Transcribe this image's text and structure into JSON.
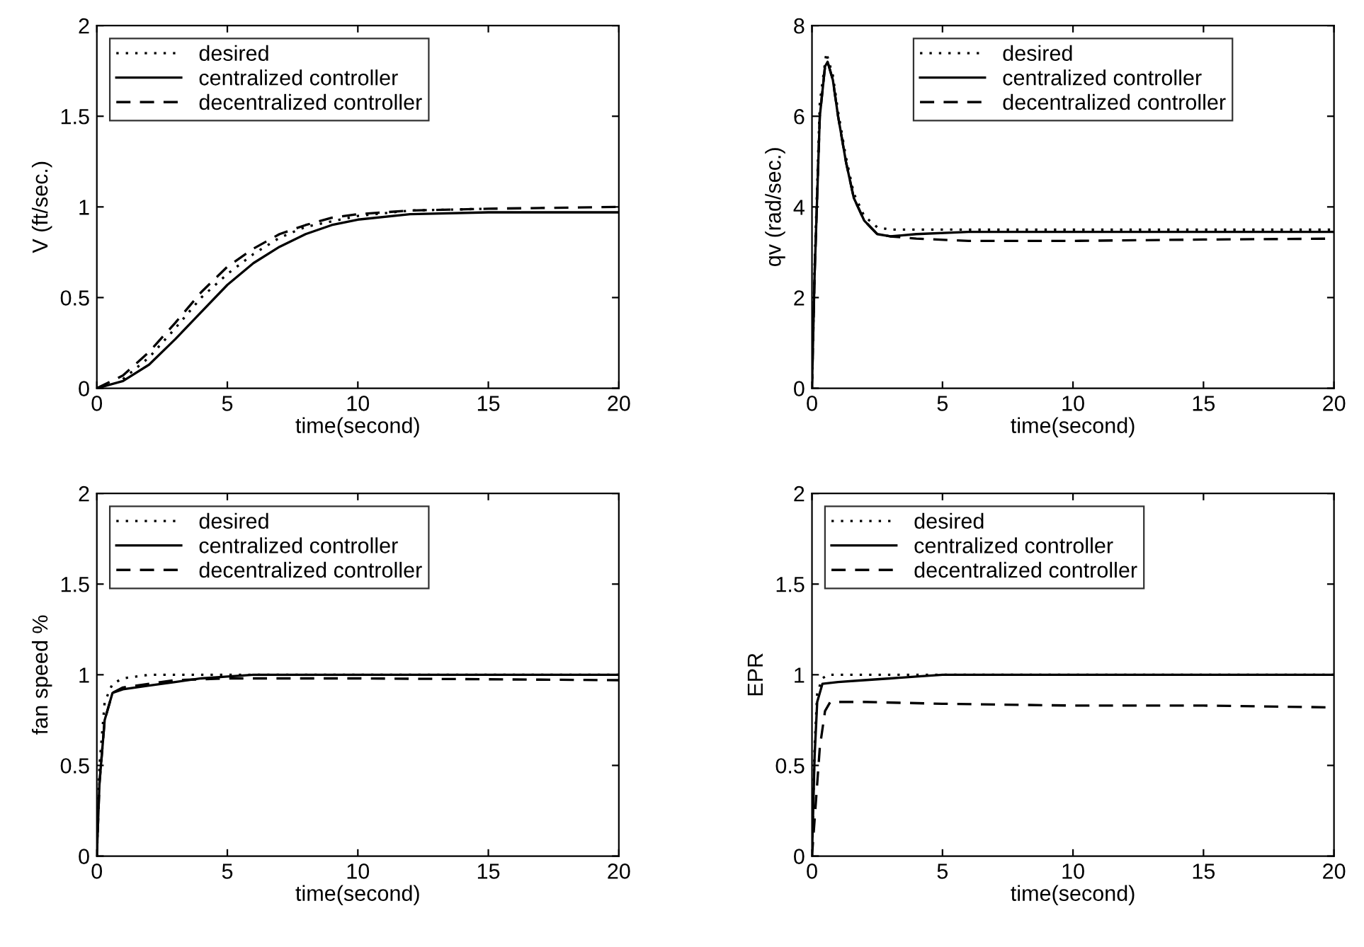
{
  "chart_data": [
    {
      "type": "line",
      "ylabel": "V (ft/sec.)",
      "xlabel": "time(second)",
      "xlim": [
        0,
        20
      ],
      "ylim": [
        0,
        2
      ],
      "xticks": [
        0,
        5,
        10,
        15,
        20
      ],
      "yticks": [
        0,
        0.5,
        1,
        1.5,
        2
      ],
      "legend": "top left",
      "grid": false,
      "series": [
        {
          "name": "desired",
          "color": "#000000",
          "line_style": "dotted",
          "x": [
            1,
            2,
            3,
            4,
            5,
            6,
            7,
            8,
            10,
            12,
            15
          ],
          "values": [
            0.05,
            0.17,
            0.33,
            0.5,
            0.63,
            0.74,
            0.83,
            0.89,
            0.95,
            0.98,
            0.99
          ]
        },
        {
          "name": "centralized controller",
          "color": "#000000",
          "line_style": "solid",
          "x": [
            0,
            1,
            2,
            3,
            4,
            5,
            6,
            7,
            8,
            9,
            10,
            12,
            15,
            20
          ],
          "values": [
            0,
            0.04,
            0.13,
            0.27,
            0.42,
            0.57,
            0.69,
            0.78,
            0.85,
            0.9,
            0.93,
            0.96,
            0.97,
            0.97
          ]
        },
        {
          "name": "decentralized controller",
          "color": "#000000",
          "line_style": "dashed",
          "x": [
            0,
            1,
            2,
            3,
            4,
            5,
            6,
            7,
            8,
            9,
            10,
            12,
            15,
            20
          ],
          "values": [
            0,
            0.07,
            0.2,
            0.36,
            0.53,
            0.67,
            0.77,
            0.85,
            0.9,
            0.94,
            0.96,
            0.98,
            0.99,
            1.0
          ]
        }
      ]
    },
    {
      "type": "line",
      "ylabel": "qv (rad/sec.)",
      "xlabel": "time(second)",
      "xlim": [
        0,
        20
      ],
      "ylim": [
        0,
        8
      ],
      "xticks": [
        0,
        5,
        10,
        15,
        20
      ],
      "yticks": [
        0,
        2,
        4,
        6,
        8
      ],
      "legend": "top",
      "grid": false,
      "series": [
        {
          "name": "desired",
          "color": "#000000",
          "line_style": "dotted",
          "x": [
            0,
            0.1,
            0.3,
            0.55,
            0.8,
            1.0,
            1.3,
            1.6,
            2.0,
            2.5,
            3,
            20
          ],
          "values": [
            0,
            2.7,
            6.3,
            7.4,
            6.9,
            6.1,
            5.1,
            4.3,
            3.8,
            3.55,
            3.5,
            3.5
          ]
        },
        {
          "name": "centralized controller",
          "color": "#000000",
          "line_style": "solid",
          "x": [
            0,
            0.1,
            0.3,
            0.5,
            0.6,
            0.8,
            1.0,
            1.3,
            1.6,
            2.0,
            2.5,
            3,
            4,
            6,
            10,
            20
          ],
          "values": [
            0,
            2.5,
            6.0,
            7.1,
            7.2,
            6.8,
            6.0,
            5.0,
            4.2,
            3.7,
            3.4,
            3.35,
            3.4,
            3.45,
            3.45,
            3.45
          ]
        },
        {
          "name": "decentralized controller",
          "color": "#000000",
          "line_style": "dashed",
          "x": [
            0,
            0.1,
            0.3,
            0.5,
            0.6,
            0.8,
            1.0,
            1.3,
            1.6,
            2.0,
            2.5,
            3,
            4,
            6,
            10,
            15,
            20
          ],
          "values": [
            0,
            2.5,
            6.0,
            7.1,
            7.2,
            6.8,
            6.0,
            5.0,
            4.2,
            3.7,
            3.4,
            3.35,
            3.3,
            3.25,
            3.25,
            3.28,
            3.3
          ]
        }
      ]
    },
    {
      "type": "line",
      "ylabel": "fan speed %",
      "xlabel": "time(second)",
      "xlim": [
        0,
        20
      ],
      "ylim": [
        0,
        2
      ],
      "xticks": [
        0,
        5,
        10,
        15,
        20
      ],
      "yticks": [
        0,
        0.5,
        1,
        1.5,
        2
      ],
      "legend": "top left",
      "grid": false,
      "series": [
        {
          "name": "desired",
          "color": "#000000",
          "line_style": "dotted",
          "x": [
            0,
            0.1,
            0.3,
            0.6,
            1,
            2,
            20
          ],
          "values": [
            0,
            0.5,
            0.85,
            0.95,
            0.98,
            1.0,
            1.0
          ]
        },
        {
          "name": "centralized controller",
          "color": "#000000",
          "line_style": "solid",
          "x": [
            0,
            0.1,
            0.3,
            0.6,
            1,
            2,
            3,
            4,
            5,
            6,
            20
          ],
          "values": [
            0,
            0.4,
            0.75,
            0.9,
            0.92,
            0.94,
            0.96,
            0.98,
            0.99,
            1.0,
            1.0
          ]
        },
        {
          "name": "decentralized controller",
          "color": "#000000",
          "line_style": "dashed",
          "x": [
            0,
            0.1,
            0.3,
            0.6,
            1,
            2,
            3,
            5,
            10,
            20
          ],
          "values": [
            0,
            0.4,
            0.75,
            0.9,
            0.93,
            0.95,
            0.97,
            0.98,
            0.98,
            0.97
          ]
        }
      ]
    },
    {
      "type": "line",
      "ylabel": "EPR",
      "xlabel": "time(second)",
      "xlim": [
        0,
        20
      ],
      "ylim": [
        0,
        2
      ],
      "xticks": [
        0,
        5,
        10,
        15,
        20
      ],
      "yticks": [
        0,
        0.5,
        1,
        1.5,
        2
      ],
      "legend": "top left",
      "grid": false,
      "series": [
        {
          "name": "desired",
          "color": "#000000",
          "line_style": "dotted",
          "x": [
            0,
            0.1,
            0.2,
            0.4,
            0.6,
            20
          ],
          "values": [
            0,
            0.6,
            0.9,
            0.98,
            1.0,
            1.0
          ]
        },
        {
          "name": "centralized controller",
          "color": "#000000",
          "line_style": "solid",
          "x": [
            0,
            0.1,
            0.2,
            0.4,
            1,
            2,
            3,
            4,
            5,
            20
          ],
          "values": [
            0,
            0.55,
            0.85,
            0.95,
            0.96,
            0.97,
            0.98,
            0.99,
            1.0,
            1.0
          ]
        },
        {
          "name": "decentralized controller",
          "color": "#000000",
          "line_style": "dashed",
          "x": [
            0,
            0.15,
            0.3,
            0.5,
            0.7,
            2,
            5,
            10,
            15,
            20
          ],
          "values": [
            0,
            0.3,
            0.6,
            0.8,
            0.85,
            0.85,
            0.84,
            0.83,
            0.83,
            0.82
          ]
        }
      ]
    }
  ]
}
